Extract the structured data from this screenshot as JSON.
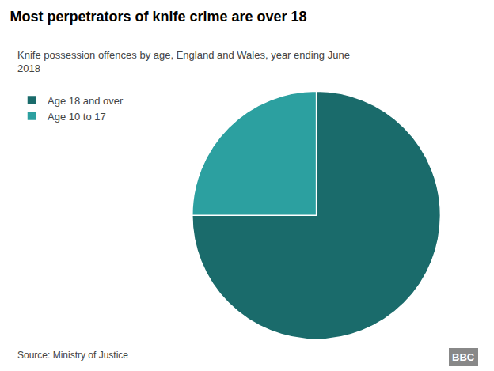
{
  "chart_data": {
    "type": "pie",
    "title": "Most perpetrators of knife crime are over 18",
    "subtitle": "Knife possession offences by age, England and Wales, year ending June\n2018",
    "categories": [
      "Age 18 and over",
      "Age 10 to 17"
    ],
    "values": [
      75,
      25
    ],
    "colors": [
      "#1a6b6b",
      "#2ca0a0"
    ],
    "legend": "upper left",
    "data_labels": false,
    "annotations": [
      "Source: Ministry of Justice",
      "BBC"
    ]
  }
}
